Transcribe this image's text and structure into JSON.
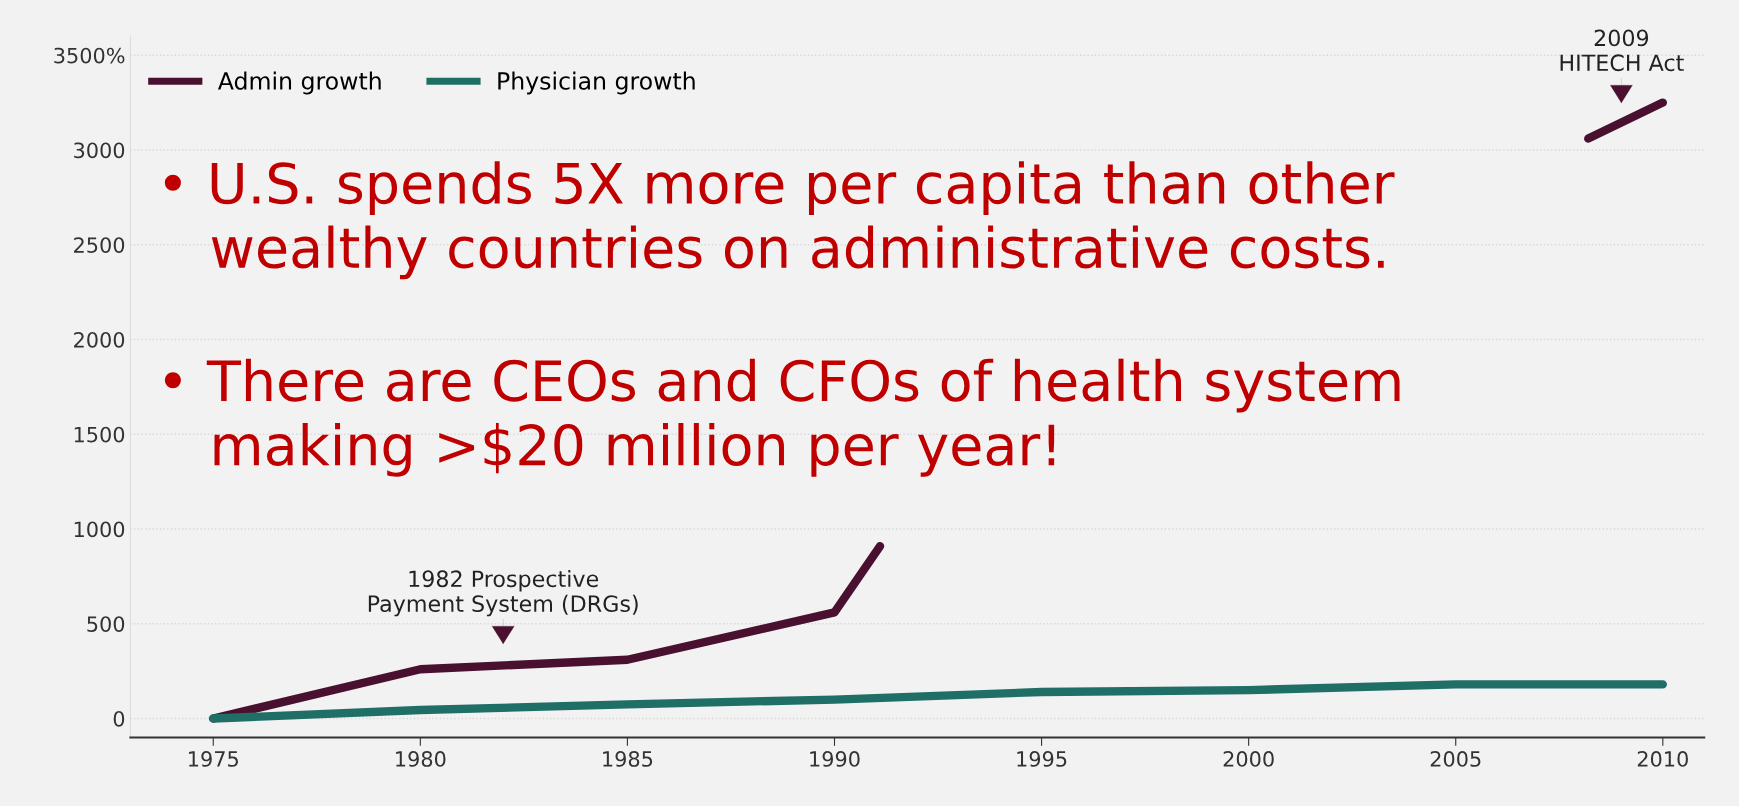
{
  "chart_data": {
    "type": "line",
    "x": [
      1975,
      1980,
      1985,
      1990,
      1995,
      2000,
      2005,
      2010
    ],
    "series": [
      {
        "name": "Admin growth",
        "color": "#4a1030",
        "x": [
          1975,
          1980,
          1985,
          1990,
          1991.1,
          2000,
          2008.2,
          2010
        ],
        "values": [
          0,
          260,
          310,
          560,
          910,
          null,
          3060,
          3250
        ]
      },
      {
        "name": "Physician growth",
        "color": "#1f6f66",
        "values": [
          0,
          45,
          75,
          100,
          140,
          150,
          180,
          180
        ]
      }
    ],
    "xlim": [
      1973,
      2011
    ],
    "xticks": [
      1975,
      1980,
      1985,
      1990,
      1995,
      2000,
      2005,
      2010
    ],
    "ylim": [
      -100,
      3600
    ],
    "yticks": [
      0,
      500,
      1000,
      1500,
      2000,
      2500,
      3000,
      {
        "value": 3500,
        "label": "3500%"
      }
    ],
    "grid": "y",
    "legend": "top left",
    "marker": "none",
    "line_style": "solid",
    "annotations": [
      {
        "text": "1982 Prospective\nPayment System (DRGs)",
        "x": 1982,
        "y": 290
      },
      {
        "text": "2009\nHITECH Act",
        "x": 2009,
        "y": 3144
      },
      "• U.S. spends 5X more per capita than other\n   wealthy countries on administrative costs.",
      "• There are CEOs and CFOs of health system\n   making >$20 million per year!"
    ]
  }
}
